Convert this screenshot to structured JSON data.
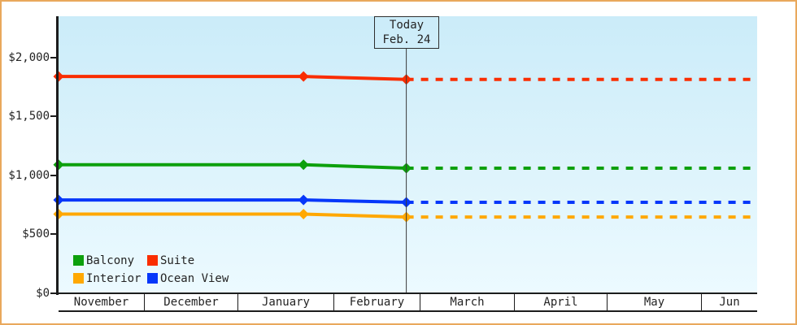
{
  "frame": {
    "border_color": "#E9A85C",
    "axis_color": "#1C1C1C"
  },
  "legend": {
    "items": [
      {
        "id": "balcony",
        "label": "Balcony",
        "color": "#0DA00D"
      },
      {
        "id": "suite",
        "label": "Suite",
        "color": "#FA2D00"
      },
      {
        "id": "interior",
        "label": "Interior",
        "color": "#FFA802"
      },
      {
        "id": "ocean-view",
        "label": "Ocean View",
        "color": "#0537FA"
      }
    ]
  },
  "chart_data": {
    "type": "line",
    "title": "",
    "description": "Cabin price history with solid observed lines, diamond markers, and dotted projected prices after today",
    "y_axis_ticks": [
      {
        "value": 0,
        "label": "$0"
      },
      {
        "value": 500,
        "label": "$500"
      },
      {
        "value": 1000,
        "label": "$1,000"
      },
      {
        "value": 1500,
        "label": "$1,500"
      },
      {
        "value": 2000,
        "label": "$2,000"
      }
    ],
    "ylim": [
      0,
      2350
    ],
    "x_months": [
      "November",
      "December",
      "January",
      "February",
      "March",
      "April",
      "May",
      "Jun"
    ],
    "timeline_days_total": 231,
    "today": {
      "label_line1": "Today",
      "label_line2": "Feb. 24",
      "day": 115
    },
    "series": [
      {
        "name": "Suite",
        "id": "suite",
        "color": "#FA2D00",
        "points": [
          {
            "day": 0,
            "date": "Nov 1",
            "price": 1840
          },
          {
            "day": 81,
            "date": "Jan 21",
            "price": 1840
          },
          {
            "day": 115,
            "date": "Feb 24",
            "price": 1815
          }
        ],
        "projected_price": 1815
      },
      {
        "name": "Balcony",
        "id": "balcony",
        "color": "#0DA00D",
        "points": [
          {
            "day": 0,
            "date": "Nov 1",
            "price": 1090
          },
          {
            "day": 81,
            "date": "Jan 21",
            "price": 1090
          },
          {
            "day": 115,
            "date": "Feb 24",
            "price": 1060
          }
        ],
        "projected_price": 1060
      },
      {
        "name": "Ocean View",
        "id": "ocean-view",
        "color": "#0537FA",
        "points": [
          {
            "day": 0,
            "date": "Nov 1",
            "price": 790
          },
          {
            "day": 81,
            "date": "Jan 21",
            "price": 790
          },
          {
            "day": 115,
            "date": "Feb 24",
            "price": 770
          }
        ],
        "projected_price": 770
      },
      {
        "name": "Interior",
        "id": "interior",
        "color": "#FFA802",
        "points": [
          {
            "day": 0,
            "date": "Nov 1",
            "price": 670
          },
          {
            "day": 81,
            "date": "Jan 21",
            "price": 670
          },
          {
            "day": 115,
            "date": "Feb 24",
            "price": 645
          }
        ],
        "projected_price": 645
      }
    ],
    "legend_position": "bottom-left",
    "grid": false
  }
}
